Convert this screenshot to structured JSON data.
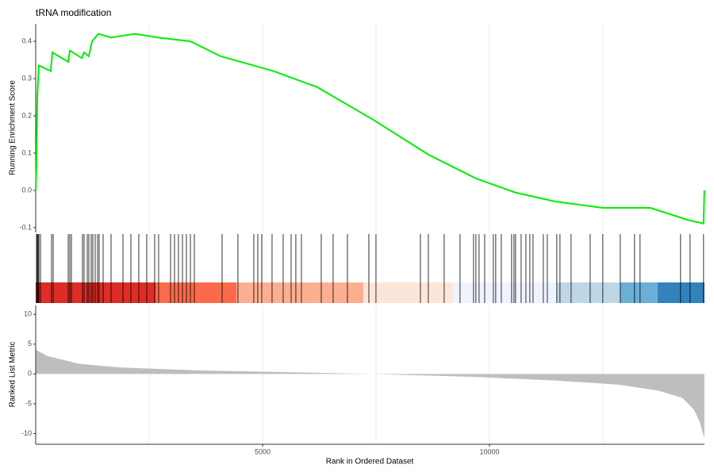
{
  "chart_data": [
    {
      "type": "line",
      "title": "tRNA modification",
      "ylabel": "Running Enrichment Score",
      "color": "#00ee00",
      "x": [
        0,
        17,
        35,
        70,
        332,
        367,
        717,
        752,
        1014,
        1066,
        1171,
        1241,
        1381,
        1661,
        2185,
        2709,
        3409,
        4073,
        5244,
        6205,
        7429,
        8653,
        9701,
        10575,
        11449,
        12498,
        13547,
        14386,
        14718,
        14735
      ],
      "values": [
        0.0,
        0.07,
        0.25,
        0.335,
        0.32,
        0.37,
        0.345,
        0.375,
        0.355,
        0.37,
        0.36,
        0.4,
        0.42,
        0.41,
        0.42,
        0.41,
        0.4,
        0.36,
        0.32,
        0.277,
        0.19,
        0.096,
        0.032,
        -0.006,
        -0.03,
        -0.047,
        -0.047,
        -0.08,
        -0.089,
        0.0
      ],
      "xlim": [
        0,
        14738
      ],
      "ylim": [
        -0.113,
        0.447
      ],
      "yticks": [
        -0.1,
        {
          "value": 0,
          "label": "0.0"
        },
        0.1,
        0.2,
        0.3,
        0.4
      ],
      "xgrid": [
        2500,
        5000,
        7500,
        10000,
        12500
      ]
    },
    {
      "type": "rug",
      "xlim": [
        0,
        14738
      ],
      "x": [
        17,
        35,
        52,
        70,
        105,
        350,
        385,
        717,
        752,
        787,
        1031,
        1066,
        1136,
        1171,
        1224,
        1259,
        1311,
        1364,
        1398,
        1486,
        1661,
        1923,
        2098,
        2272,
        2447,
        2622,
        2709,
        2972,
        3059,
        3146,
        3234,
        3321,
        3409,
        3496,
        4108,
        4457,
        4807,
        4894,
        4982,
        5209,
        5454,
        5629,
        5733,
        5856,
        6293,
        6555,
        6870,
        7342,
        7499,
        8478,
        8653,
        9002,
        9352,
        9649,
        9701,
        9771,
        9894,
        10086,
        10138,
        10261,
        10488,
        10540,
        10575,
        10698,
        10803,
        10890,
        10960,
        11187,
        11275,
        11484,
        11554,
        11799,
        12219,
        12498,
        12883,
        13197,
        13319,
        14211,
        14421,
        14718
      ],
      "bands": [
        {
          "start": 0,
          "end": 2640,
          "color": "#de2d26"
        },
        {
          "start": 2640,
          "end": 4422,
          "color": "#fb6a4a"
        },
        {
          "start": 4422,
          "end": 7219,
          "color": "#fcae91"
        },
        {
          "start": 7219,
          "end": 9194,
          "color": "#fee5d9"
        },
        {
          "start": 9194,
          "end": 11484,
          "color": "#eff3ff"
        },
        {
          "start": 11484,
          "end": 12883,
          "color": "#bdd7e7"
        },
        {
          "start": 12883,
          "end": 13704,
          "color": "#6baed6"
        },
        {
          "start": 13704,
          "end": 14738,
          "color": "#3182bd"
        }
      ]
    },
    {
      "type": "area",
      "ylabel": "Ranked List Metric",
      "xlabel": "Rank in Ordered Dataset",
      "color": "#bebebe",
      "x": [
        0,
        17,
        262,
        962,
        1835,
        3583,
        6205,
        7429,
        9701,
        11449,
        12847,
        13721,
        14246,
        14508,
        14630,
        14735
      ],
      "values": [
        5.8,
        4,
        3,
        1.7,
        1.1,
        0.6,
        0.2,
        0,
        -0.5,
        -1.1,
        -1.8,
        -2.8,
        -4,
        -6,
        -8,
        -10.8
      ],
      "xlim": [
        0,
        14738
      ],
      "ylim": [
        -11.8,
        11.5
      ],
      "yticks": [
        -10,
        -5,
        0,
        5,
        10
      ],
      "xticks": [
        5000,
        10000
      ]
    }
  ]
}
